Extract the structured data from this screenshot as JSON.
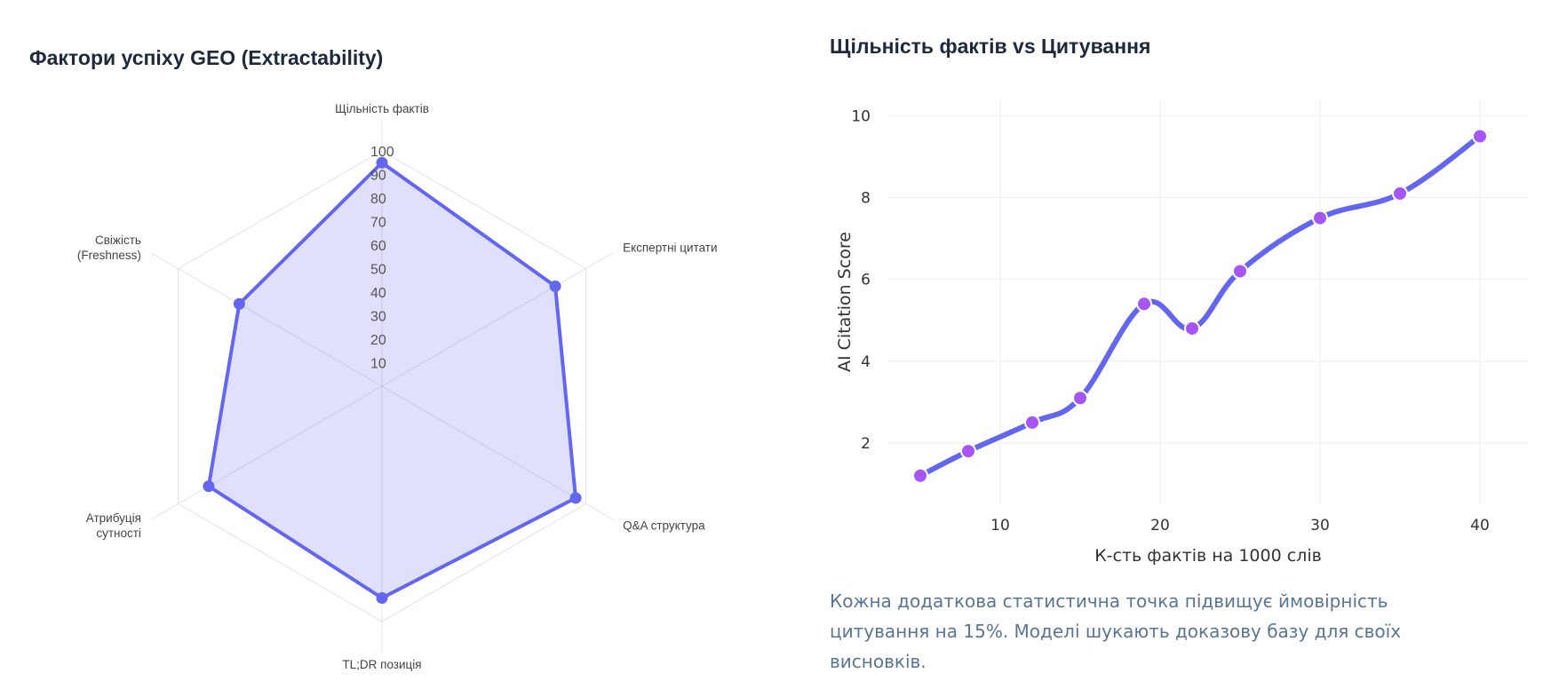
{
  "radar": {
    "title": "Фактори успіху GEO (Extractability)"
  },
  "line": {
    "title": "Щільність фактів vs Цитування"
  },
  "caption": "Кожна додаткова статистична точка підвищує ймовірність цитування на 15%. Моделі шукають доказову базу для своїх висновків.",
  "colors": {
    "accent": "#6366f1",
    "fill": "#6366f1",
    "marker": "#a855f7",
    "caption": "#5a7594"
  },
  "chart_data": [
    {
      "type": "radar",
      "title": "Фактори успіху GEO (Extractability)",
      "axes": [
        [
          "Щільність фактів"
        ],
        [
          "Експертні цитати"
        ],
        [
          "Q&A структура"
        ],
        [
          "TL;DR позиція"
        ],
        [
          "Атрибуція",
          "сутності"
        ],
        [
          "Свіжість",
          "(Freshness)"
        ]
      ],
      "values": [
        95,
        85,
        95,
        90,
        85,
        70
      ],
      "range": [
        0,
        100
      ],
      "ticks": [
        10,
        20,
        30,
        40,
        50,
        60,
        70,
        80,
        90,
        100
      ],
      "grid": true
    },
    {
      "type": "line",
      "title": "Щільність фактів vs Цитування",
      "xlabel": "К-сть фактів на 1000 слів",
      "ylabel": "AI Citation Score",
      "x": [
        5,
        8,
        12,
        15,
        19,
        22,
        25,
        30,
        35,
        40
      ],
      "y": [
        1.2,
        1.8,
        2.5,
        3.1,
        5.4,
        4.8,
        6.2,
        7.5,
        8.1,
        9.5
      ],
      "xlim": [
        3,
        43
      ],
      "ylim": [
        0.5,
        10.4
      ],
      "xticks": [
        10,
        20,
        30,
        40
      ],
      "yticks": [
        2,
        4,
        6,
        8,
        10
      ],
      "line_shape": "spline",
      "grid": true
    }
  ]
}
